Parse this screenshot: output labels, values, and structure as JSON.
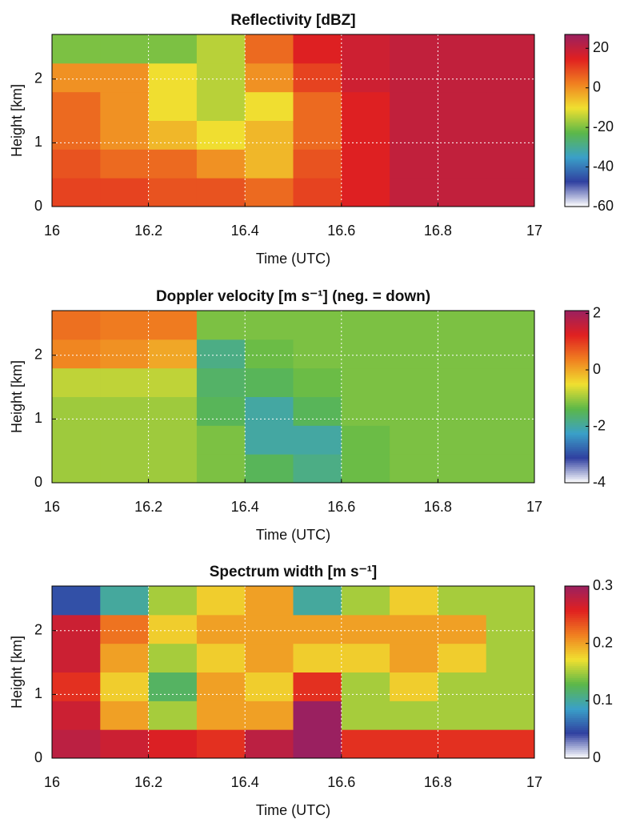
{
  "chart_data": [
    {
      "type": "heatmap",
      "title": "Reflectivity [dBZ]",
      "xlabel": "Time (UTC)",
      "ylabel": "Height [km]",
      "x": [
        16.05,
        16.15,
        16.25,
        16.35,
        16.45,
        16.55,
        16.65,
        16.75,
        16.85,
        16.95
      ],
      "y": [
        0.225,
        0.675,
        1.125,
        1.575,
        2.025,
        2.475
      ],
      "z": [
        [
          10,
          10,
          8,
          8,
          5,
          10,
          15,
          20,
          20,
          20
        ],
        [
          8,
          5,
          5,
          0,
          -5,
          8,
          15,
          20,
          20,
          20
        ],
        [
          5,
          0,
          -5,
          -10,
          -5,
          5,
          15,
          20,
          20,
          20
        ],
        [
          5,
          0,
          -10,
          -15,
          -10,
          5,
          15,
          20,
          20,
          20
        ],
        [
          0,
          0,
          -10,
          -15,
          0,
          10,
          18,
          20,
          20,
          20
        ],
        [
          -20,
          -20,
          -20,
          -15,
          5,
          15,
          18,
          20,
          20,
          20
        ]
      ],
      "xlim": [
        16,
        17
      ],
      "ylim": [
        0,
        2.7
      ],
      "xticks": [
        16,
        16.2,
        16.4,
        16.6,
        16.8,
        17
      ],
      "yticks": [
        0,
        1,
        2
      ],
      "clim": [
        -60,
        27
      ],
      "cticks": [
        20,
        0,
        -20,
        -40,
        -60
      ],
      "colormap": [
        "#ffffff",
        "#3040a0",
        "#3aa0c8",
        "#5cb848",
        "#f0e030",
        "#f08020",
        "#e02020",
        "#9a2060"
      ],
      "grid": true
    },
    {
      "type": "heatmap",
      "title": "Doppler velocity [m s⁻¹] (neg. = down)",
      "xlabel": "Time (UTC)",
      "ylabel": "Height [km]",
      "x": [
        16.05,
        16.15,
        16.25,
        16.35,
        16.45,
        16.55,
        16.65,
        16.75,
        16.85,
        16.95
      ],
      "y": [
        0.225,
        0.675,
        1.125,
        1.575,
        2.025,
        2.475
      ],
      "z": [
        [
          -1,
          -1,
          -1,
          -1.2,
          -1.5,
          -1.8,
          -1.3,
          -1.2,
          -1.2,
          -1.2
        ],
        [
          -1,
          -1,
          -1,
          -1.2,
          -2,
          -2,
          -1.3,
          -1.2,
          -1.2,
          -1.2
        ],
        [
          -1,
          -1,
          -1,
          -1.5,
          -2,
          -1.5,
          -1.2,
          -1.2,
          -1.2,
          -1.2
        ],
        [
          -0.8,
          -0.8,
          -0.8,
          -1.6,
          -1.5,
          -1.3,
          -1.2,
          -1.2,
          -1.2,
          -1.2
        ],
        [
          0.3,
          0.2,
          0,
          -1.8,
          -1.3,
          -1.2,
          -1.2,
          -1.2,
          -1.2,
          -1.2
        ],
        [
          0.5,
          0.4,
          0.4,
          -1.2,
          -1.2,
          -1.2,
          -1.2,
          -1.2,
          -1.2,
          -1.2
        ]
      ],
      "xlim": [
        16,
        17
      ],
      "ylim": [
        0,
        2.7
      ],
      "xticks": [
        16,
        16.2,
        16.4,
        16.6,
        16.8,
        17
      ],
      "yticks": [
        0,
        1,
        2
      ],
      "clim": [
        -4,
        2.1
      ],
      "cticks": [
        2,
        0,
        -2,
        -4
      ],
      "colormap": [
        "#ffffff",
        "#3040a0",
        "#3aa0c8",
        "#5cb848",
        "#f0e030",
        "#f08020",
        "#e02020",
        "#9a2060"
      ],
      "grid": true
    },
    {
      "type": "heatmap",
      "title": "Spectrum width [m s⁻¹]",
      "xlabel": "Time (UTC)",
      "ylabel": "Height [km]",
      "x": [
        16.05,
        16.15,
        16.25,
        16.35,
        16.45,
        16.55,
        16.65,
        16.75,
        16.85,
        16.95
      ],
      "y": [
        0.225,
        0.675,
        1.125,
        1.575,
        2.025,
        2.475
      ],
      "z": [
        [
          0.28,
          0.27,
          0.26,
          0.25,
          0.28,
          0.3,
          0.25,
          0.25,
          0.25,
          0.25
        ],
        [
          0.27,
          0.2,
          0.15,
          0.2,
          0.2,
          0.3,
          0.15,
          0.15,
          0.15,
          0.15
        ],
        [
          0.25,
          0.18,
          0.12,
          0.2,
          0.18,
          0.25,
          0.15,
          0.18,
          0.15,
          0.15
        ],
        [
          0.27,
          0.2,
          0.15,
          0.18,
          0.2,
          0.18,
          0.18,
          0.2,
          0.18,
          0.15
        ],
        [
          0.27,
          0.22,
          0.18,
          0.2,
          0.2,
          0.2,
          0.2,
          0.2,
          0.2,
          0.15
        ],
        [
          0.05,
          0.1,
          0.15,
          0.18,
          0.2,
          0.1,
          0.15,
          0.18,
          0.15,
          0.15
        ]
      ],
      "xlim": [
        16,
        17
      ],
      "ylim": [
        0,
        2.7
      ],
      "xticks": [
        16,
        16.2,
        16.4,
        16.6,
        16.8,
        17
      ],
      "yticks": [
        0,
        1,
        2
      ],
      "clim": [
        0,
        0.3
      ],
      "cticks": [
        0.3,
        0.2,
        0.1,
        0
      ],
      "colormap": [
        "#ffffff",
        "#3040a0",
        "#3aa0c8",
        "#5cb848",
        "#f0e030",
        "#f08020",
        "#e02020",
        "#9a2060"
      ],
      "grid": true
    }
  ]
}
